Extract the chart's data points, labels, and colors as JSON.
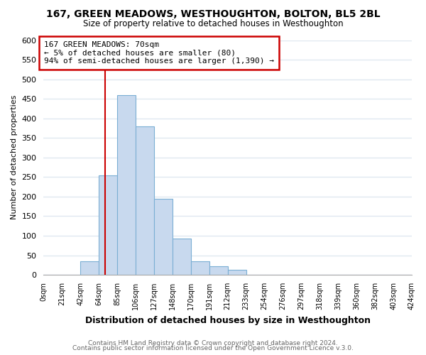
{
  "title": "167, GREEN MEADOWS, WESTHOUGHTON, BOLTON, BL5 2BL",
  "subtitle": "Size of property relative to detached houses in Westhoughton",
  "xlabel": "Distribution of detached houses by size in Westhoughton",
  "ylabel": "Number of detached properties",
  "bar_values": [
    0,
    0,
    35,
    255,
    460,
    380,
    195,
    93,
    35,
    22,
    12,
    0,
    0,
    0,
    0,
    0,
    0,
    0,
    0,
    0
  ],
  "bin_labels": [
    "0sqm",
    "21sqm",
    "42sqm",
    "64sqm",
    "85sqm",
    "106sqm",
    "127sqm",
    "148sqm",
    "170sqm",
    "191sqm",
    "212sqm",
    "233sqm",
    "254sqm",
    "276sqm",
    "297sqm",
    "318sqm",
    "339sqm",
    "360sqm",
    "382sqm",
    "403sqm",
    "424sqm"
  ],
  "bar_color": "#c8d9ee",
  "bar_edge_color": "#7bafd4",
  "vline_x": 3.33,
  "vline_color": "#cc0000",
  "annotation_box_color": "#ffffff",
  "annotation_box_edge": "#cc0000",
  "annotation_line1": "167 GREEN MEADOWS: 70sqm",
  "annotation_line2": "← 5% of detached houses are smaller (80)",
  "annotation_line3": "94% of semi-detached houses are larger (1,390) →",
  "ylim": [
    0,
    600
  ],
  "yticks": [
    0,
    50,
    100,
    150,
    200,
    250,
    300,
    350,
    400,
    450,
    500,
    550,
    600
  ],
  "footer1": "Contains HM Land Registry data © Crown copyright and database right 2024.",
  "footer2": "Contains public sector information licensed under the Open Government Licence v.3.0.",
  "bg_color": "#ffffff",
  "plot_bg_color": "#ffffff",
  "grid_color": "#e0e8f0"
}
